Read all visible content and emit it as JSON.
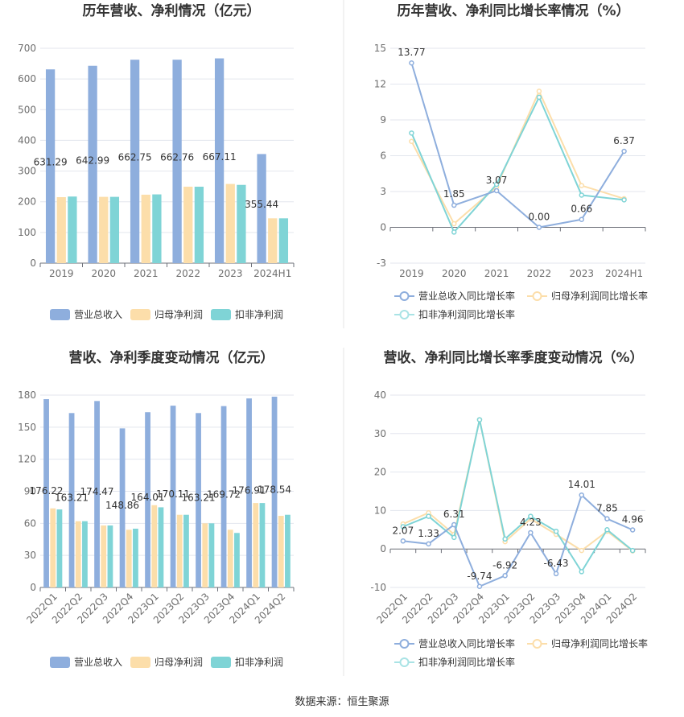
{
  "colors": {
    "revenue": "#8eaedd",
    "parent_profit": "#fcdeaa",
    "nonrecurring_profit": "#7fd4d6",
    "grid": "#e3e6ee",
    "axis": "#6e7079",
    "divider": "#e6e6e6"
  },
  "source_text": "数据来源：恒生聚源",
  "chart_data": [
    {
      "type": "bar",
      "title": "历年营收、净利情况（亿元）",
      "categories": [
        "2019",
        "2020",
        "2021",
        "2022",
        "2023",
        "2024H1"
      ],
      "ylim": [
        0,
        700
      ],
      "yticks": [
        0,
        100,
        200,
        300,
        400,
        500,
        600,
        700
      ],
      "series": [
        {
          "name": "营业总收入",
          "values": [
            631.29,
            642.99,
            662.75,
            662.76,
            667.11,
            355.44
          ]
        },
        {
          "name": "归母净利润",
          "values": [
            215,
            216,
            223,
            249,
            258,
            146
          ]
        },
        {
          "name": "扣非净利润",
          "values": [
            217,
            216,
            224,
            249,
            255,
            146
          ]
        }
      ],
      "value_labels": [
        "631.29",
        "642.99",
        "662.75",
        "662.76",
        "667.11",
        "355.44"
      ],
      "legend": [
        "营业总收入",
        "归母净利润",
        "扣非净利润"
      ]
    },
    {
      "type": "line",
      "title": "历年营收、净利同比增长率情况（%）",
      "categories": [
        "2019",
        "2020",
        "2021",
        "2022",
        "2023",
        "2024H1"
      ],
      "ylim": [
        -3,
        15
      ],
      "yticks": [
        -3,
        0,
        3,
        6,
        9,
        12,
        15
      ],
      "series": [
        {
          "name": "营业总收入同比增长率",
          "values": [
            13.77,
            1.85,
            3.07,
            0.0,
            0.66,
            6.37
          ]
        },
        {
          "name": "归母净利润同比增长率",
          "values": [
            7.2,
            0.3,
            3.4,
            11.4,
            3.5,
            2.4
          ]
        },
        {
          "name": "扣非净利润同比增长率",
          "values": [
            7.9,
            -0.4,
            3.6,
            10.9,
            2.7,
            2.3
          ]
        }
      ],
      "value_labels": [
        "13.77",
        "1.85",
        "3.07",
        "0.00",
        "0.66",
        "6.37"
      ],
      "legend": [
        "营业总收入同比增长率",
        "归母净利润同比增长率",
        "扣非净利润同比增长率"
      ]
    },
    {
      "type": "bar",
      "title": "营收、净利季度变动情况（亿元）",
      "categories": [
        "2022Q1",
        "2022Q2",
        "2022Q3",
        "2022Q4",
        "2023Q1",
        "2023Q2",
        "2023Q3",
        "2023Q4",
        "2024Q1",
        "2024Q2"
      ],
      "ylim": [
        0,
        180
      ],
      "yticks": [
        0,
        30,
        60,
        90,
        120,
        150,
        180
      ],
      "series": [
        {
          "name": "营业总收入",
          "values": [
            176.22,
            163.21,
            174.47,
            148.86,
            164.01,
            170.11,
            163.21,
            169.72,
            176.91,
            178.54
          ]
        },
        {
          "name": "归母净利润",
          "values": [
            74,
            62,
            58,
            54,
            77,
            68,
            60,
            54,
            79,
            67
          ]
        },
        {
          "name": "扣非净利润",
          "values": [
            73,
            62,
            58,
            55,
            75,
            68,
            60,
            51,
            79,
            68
          ]
        }
      ],
      "value_labels": [
        "176.22",
        "163.21",
        "174.47",
        "148.86",
        "164.01",
        "170.11",
        "163.21",
        "169.72",
        "176.91",
        "178.54"
      ],
      "legend": [
        "营业总收入",
        "归母净利润",
        "扣非净利润"
      ]
    },
    {
      "type": "line",
      "title": "营收、净利同比增长率季度变动情况（%）",
      "categories": [
        "2022Q1",
        "2022Q2",
        "2022Q3",
        "2022Q4",
        "2023Q1",
        "2023Q2",
        "2023Q3",
        "2023Q4",
        "2024Q1",
        "2024Q2"
      ],
      "ylim": [
        -10,
        40
      ],
      "yticks": [
        -10,
        0,
        10,
        20,
        30,
        40
      ],
      "series": [
        {
          "name": "营业总收入同比增长率",
          "values": [
            2.07,
            1.33,
            6.31,
            -9.74,
            -6.92,
            4.23,
            -6.43,
            14.01,
            7.85,
            4.96
          ]
        },
        {
          "name": "归母净利润同比增长率",
          "values": [
            6.5,
            9.4,
            3.8,
            33.6,
            1.9,
            7.8,
            3.8,
            -0.4,
            4.6,
            -0.5
          ]
        },
        {
          "name": "扣非净利润同比增长率",
          "values": [
            5.8,
            8.5,
            3.0,
            33.6,
            2.6,
            8.5,
            4.6,
            -5.9,
            5.0,
            -0.4
          ]
        }
      ],
      "value_labels": [
        "2.07",
        "1.33",
        "6.31",
        "-9.74",
        "-6.92",
        "4.23",
        "-6.43",
        "14.01",
        "7.85",
        "4.96"
      ],
      "legend": [
        "营业总收入同比增长率",
        "归母净利润同比增长率",
        "扣非净利润同比增长率"
      ]
    }
  ]
}
